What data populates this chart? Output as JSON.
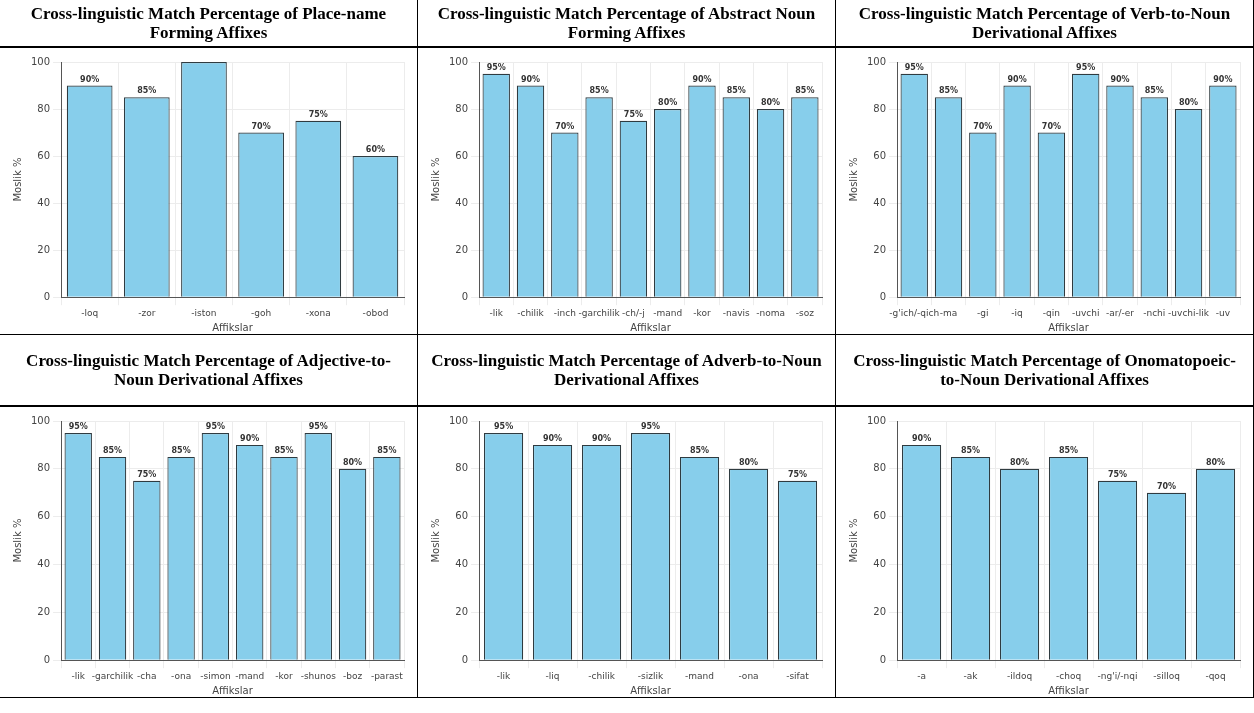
{
  "chart_data": [
    {
      "type": "bar",
      "title": "Cross-linguistic Match Percentage of Place-name Forming Affixes",
      "xlabel": "Affikslar",
      "ylabel": "Moslik %",
      "categories": [
        "-loq",
        "-zor",
        "-iston",
        "-goh",
        "-xona",
        "-obod"
      ],
      "values": [
        90,
        85,
        100,
        70,
        75,
        60
      ],
      "value_labels": [
        "90%",
        "85%",
        null,
        "70%",
        "75%",
        "60%"
      ],
      "color": "#87ceeb",
      "ylim": [
        0,
        100
      ],
      "yticks": [
        0,
        20,
        40,
        60,
        80,
        100
      ],
      "grid": true
    },
    {
      "type": "bar",
      "title": "Cross-linguistic Match Percentage of Abstract Noun Forming Affixes",
      "xlabel": "Affikslar",
      "ylabel": "Moslik %",
      "categories": [
        "-lik",
        "-chilik",
        "-inch",
        "-garchilik",
        "-ch/-j",
        "-mand",
        "-kor",
        "-navis",
        "-noma",
        "-soz"
      ],
      "values": [
        95,
        90,
        70,
        85,
        75,
        80,
        90,
        85,
        80,
        85
      ],
      "value_labels": [
        "95%",
        "90%",
        "70%",
        "85%",
        "75%",
        "80%",
        "90%",
        "85%",
        "80%",
        "85%"
      ],
      "color": "#87ceeb",
      "ylim": [
        0,
        100
      ],
      "yticks": [
        0,
        20,
        40,
        60,
        80,
        100
      ],
      "grid": true
    },
    {
      "type": "bar",
      "title": "Cross-linguistic Match Percentage of Verb-to-Noun Derivational Affixes",
      "xlabel": "Affikslar",
      "ylabel": "Moslik %",
      "categories": [
        "-g'ich/-qich",
        "-ma",
        "-gi",
        "-iq",
        "-qin",
        "-uvchi",
        "-ar/-er",
        "-nchi",
        "-uvchi-lik",
        "-uv"
      ],
      "values": [
        95,
        85,
        70,
        90,
        70,
        95,
        90,
        85,
        80,
        90
      ],
      "value_labels": [
        "95%",
        "85%",
        "70%",
        "90%",
        "70%",
        "95%",
        "90%",
        "85%",
        "80%",
        "90%"
      ],
      "color": "#87ceeb",
      "ylim": [
        0,
        100
      ],
      "yticks": [
        0,
        20,
        40,
        60,
        80,
        100
      ],
      "grid": true
    },
    {
      "type": "bar",
      "title": "Cross-linguistic Match Percentage of Adjective-to-Noun Derivational Affixes",
      "xlabel": "Affikslar",
      "ylabel": "Moslik %",
      "categories": [
        "-lik",
        "-garchilik",
        "-cha",
        "-ona",
        "-simon",
        "-mand",
        "-kor",
        "-shunos",
        "-boz",
        "-parast"
      ],
      "values": [
        95,
        85,
        75,
        85,
        95,
        90,
        85,
        95,
        80,
        85
      ],
      "value_labels": [
        "95%",
        "85%",
        "75%",
        "85%",
        "95%",
        "90%",
        "85%",
        "95%",
        "80%",
        "85%"
      ],
      "color": "#87ceeb",
      "ylim": [
        0,
        100
      ],
      "yticks": [
        0,
        20,
        40,
        60,
        80,
        100
      ],
      "grid": true
    },
    {
      "type": "bar",
      "title": "Cross-linguistic Match Percentage of Adverb-to-Noun Derivational Affixes",
      "xlabel": "Affikslar",
      "ylabel": "Moslik %",
      "categories": [
        "-lik",
        "-liq",
        "-chilik",
        "-sizlik",
        "-mand",
        "-ona",
        "-sifat"
      ],
      "values": [
        95,
        90,
        90,
        95,
        85,
        80,
        75
      ],
      "value_labels": [
        "95%",
        "90%",
        "90%",
        "95%",
        "85%",
        "80%",
        "75%"
      ],
      "color": "#87ceeb",
      "ylim": [
        0,
        100
      ],
      "yticks": [
        0,
        20,
        40,
        60,
        80,
        100
      ],
      "grid": true
    },
    {
      "type": "bar",
      "title": "Cross-linguistic Match Percentage of Onomatopoeic-to-Noun Derivational Affixes",
      "xlabel": "Affikslar",
      "ylabel": "Moslik %",
      "categories": [
        "-a",
        "-ak",
        "-ildoq",
        "-choq",
        "-ng'i/-nqi",
        "-silloq",
        "-qoq"
      ],
      "values": [
        90,
        85,
        80,
        85,
        75,
        70,
        80
      ],
      "value_labels": [
        "90%",
        "85%",
        "80%",
        "85%",
        "75%",
        "70%",
        "80%"
      ],
      "color": "#87ceeb",
      "ylim": [
        0,
        100
      ],
      "yticks": [
        0,
        20,
        40,
        60,
        80,
        100
      ],
      "grid": true
    }
  ]
}
